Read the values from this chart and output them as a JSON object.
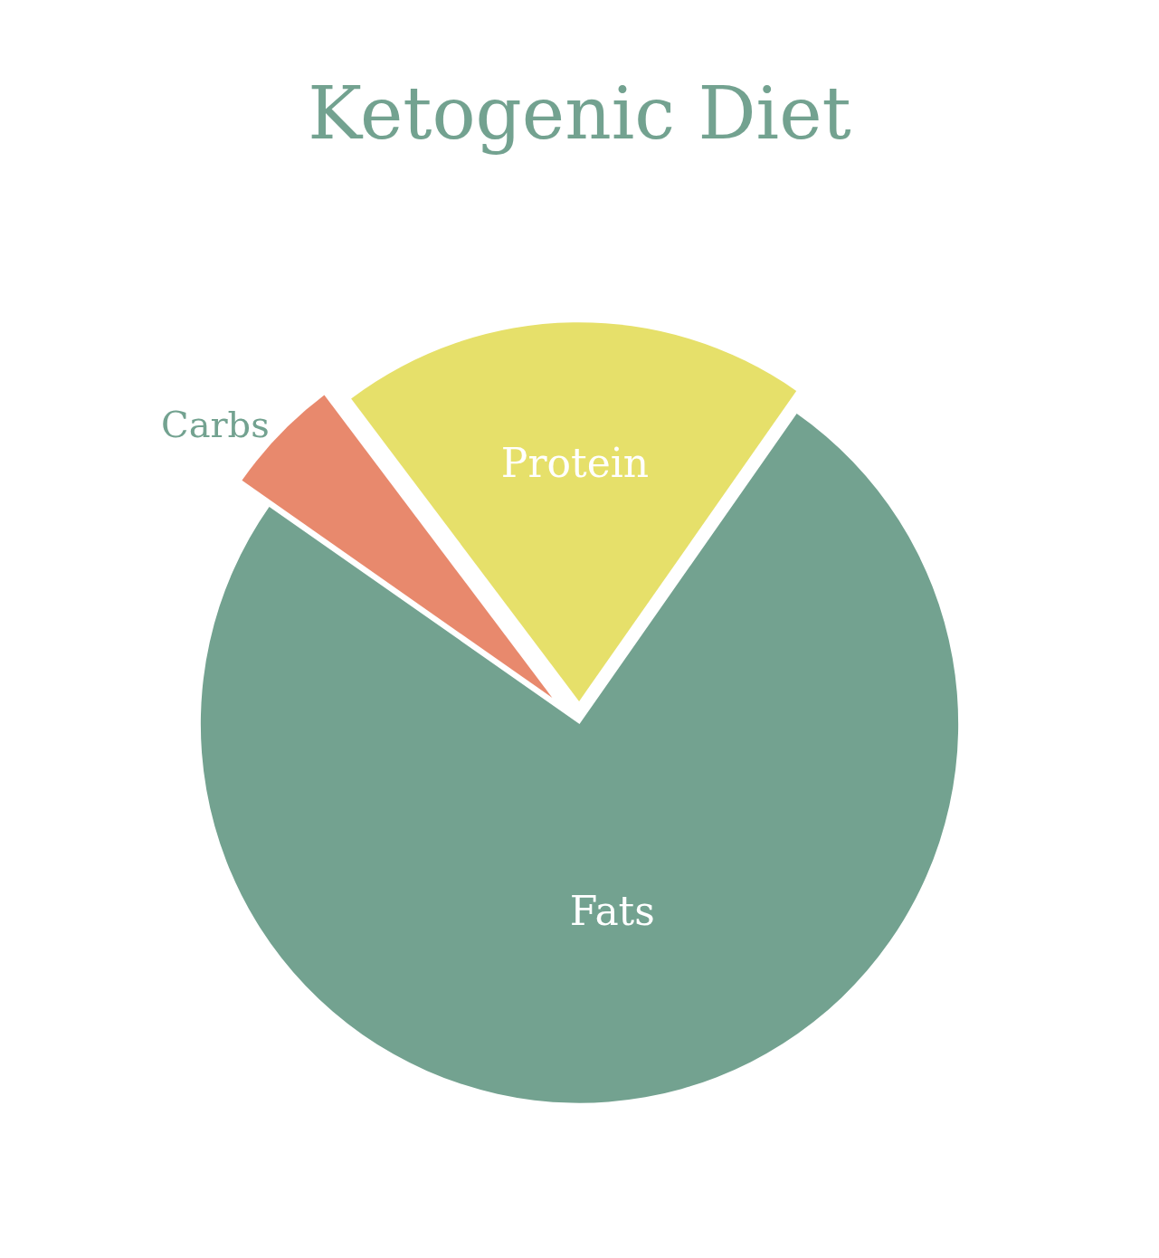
{
  "chart_data": {
    "type": "pie",
    "title": "Ketogenic Diet",
    "categories": [
      "Protein",
      "Fats",
      "Carbs"
    ],
    "values": [
      20,
      75,
      5
    ],
    "colors": [
      "#e6e06a",
      "#73a290",
      "#e8896d"
    ],
    "legend": false
  }
}
